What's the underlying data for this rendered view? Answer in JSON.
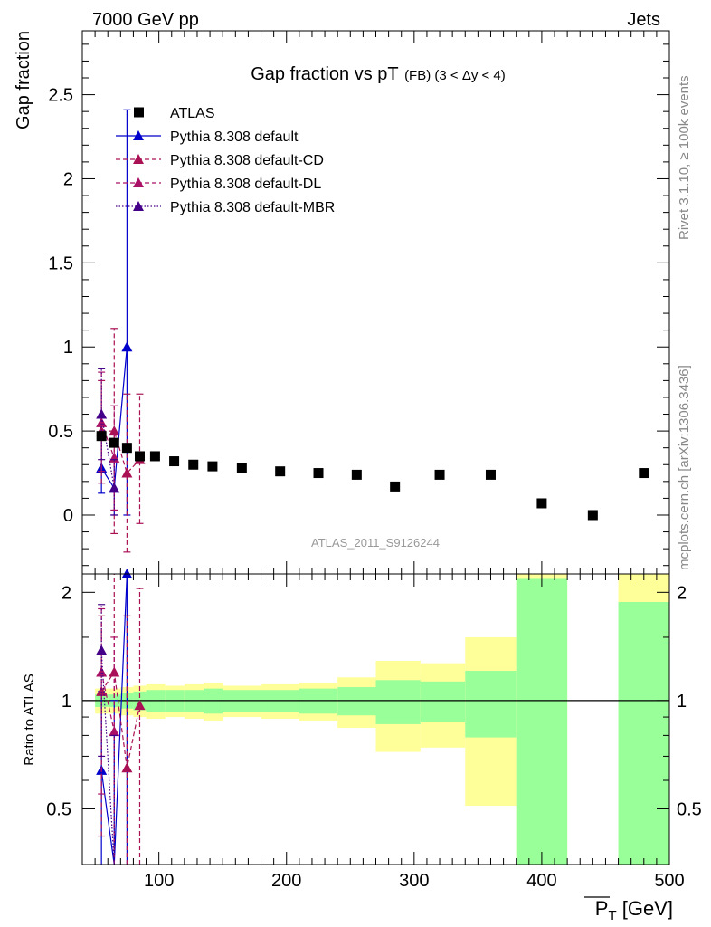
{
  "header": {
    "energy_label": "7000 GeV pp",
    "process_label": "Jets",
    "analysis_id": "ATLAS_2011_S9126244",
    "side_text_rivet": "Rivet 3.1.10, ≥ 100k events",
    "side_text_source": "mcplots.cern.ch [arXiv:1306.3436]"
  },
  "chart_data": [
    {
      "type": "scatter",
      "title_main": "Gap fraction vs pT",
      "title_sub": "(FB) (3 < Δy < 4)",
      "ylabel": "Gap fraction",
      "ylim": [
        -0.35,
        2.88
      ],
      "xlim": [
        40,
        500
      ],
      "y_ticks": [
        0,
        0.5,
        1,
        1.5,
        2,
        2.5
      ],
      "y_tick_labels": [
        "0",
        "0.5",
        "1",
        "1.5",
        "2",
        "2.5"
      ],
      "legend_position": "top-left",
      "legend": [
        {
          "label": "ATLAS",
          "color": "#000000",
          "marker": "square",
          "line": "none"
        },
        {
          "label": "Pythia 8.308 default",
          "color": "#0000cc",
          "marker": "triangle",
          "line": "solid"
        },
        {
          "label": "Pythia 8.308 default-CD",
          "color": "#aa1155",
          "marker": "triangle",
          "line": "dashed"
        },
        {
          "label": "Pythia 8.308 default-DL",
          "color": "#aa1166",
          "marker": "triangle",
          "line": "dashed"
        },
        {
          "label": "Pythia 8.308 default-MBR",
          "color": "#440088",
          "marker": "triangle",
          "line": "dotted"
        }
      ],
      "data_series": {
        "name": "ATLAS",
        "x": [
          55,
          65,
          75,
          85,
          97,
          112,
          127,
          142,
          165,
          195,
          225,
          255,
          285,
          320,
          360,
          400,
          440,
          480
        ],
        "y": [
          0.47,
          0.43,
          0.4,
          0.35,
          0.35,
          0.32,
          0.3,
          0.29,
          0.28,
          0.26,
          0.25,
          0.24,
          0.17,
          0.24,
          0.24,
          0.07,
          0.0,
          0.25
        ],
        "x_edges": [
          50,
          60,
          70,
          80,
          90,
          105,
          120,
          135,
          150,
          180,
          210,
          240,
          270,
          305,
          340,
          380,
          420,
          460,
          500
        ]
      },
      "mc_series": [
        {
          "name": "Pythia 8.308 default",
          "color": "#0000cc",
          "dash": "solid",
          "x": [
            55,
            65,
            75
          ],
          "y": [
            0.28,
            0.16,
            1.0
          ],
          "err_lo": [
            0.13,
            0.0,
            0.0
          ],
          "err_hi": [
            0.45,
            0.33,
            2.41
          ]
        },
        {
          "name": "Pythia 8.308 default-CD",
          "color": "#aa1155",
          "dash": "dashed",
          "x": [
            55,
            65,
            75,
            85
          ],
          "y": [
            0.5,
            0.5,
            0.25,
            0.33
          ],
          "err_lo": [
            0.19,
            -0.11,
            -0.22,
            -0.05
          ],
          "err_hi": [
            0.8,
            1.11,
            0.72,
            0.72
          ]
        },
        {
          "name": "Pythia 8.308 default-DL",
          "color": "#aa1166",
          "dash": "dashed",
          "x": [
            55,
            65
          ],
          "y": [
            0.55,
            0.34
          ],
          "err_lo": [
            0.26,
            0.03
          ],
          "err_hi": [
            0.85,
            0.65
          ]
        },
        {
          "name": "Pythia 8.308 default-MBR",
          "color": "#440088",
          "dash": "dotted",
          "x": [
            55,
            65
          ],
          "y": [
            0.6,
            0.16
          ],
          "err_lo": [
            0.33,
            0.0
          ],
          "err_hi": [
            0.87,
            0.33
          ]
        }
      ]
    },
    {
      "type": "scatter",
      "ylabel": "Ratio to ATLAS",
      "xlabel_main": "P",
      "xlabel_sub": "T",
      "xlabel_unit": " [GeV]",
      "ylim": [
        0.35,
        2.25
      ],
      "xlim": [
        40,
        500
      ],
      "y_ticks": [
        0.5,
        1,
        2
      ],
      "y_tick_labels": [
        "0.5",
        "1",
        "2"
      ],
      "x_ticks": [
        100,
        200,
        300,
        400,
        500
      ],
      "x_tick_labels": [
        "100",
        "200",
        "300",
        "400",
        "500"
      ],
      "reference_line": 1,
      "band_colors": {
        "stat": "#99ff99",
        "total": "#ffff99"
      },
      "bands": {
        "x_edges": [
          50,
          60,
          70,
          80,
          90,
          105,
          120,
          135,
          150,
          180,
          210,
          240,
          270,
          305,
          340,
          380,
          420,
          460,
          500
        ],
        "inner_lo": [
          0.96,
          0.96,
          0.95,
          0.94,
          0.93,
          0.93,
          0.93,
          0.92,
          0.93,
          0.93,
          0.92,
          0.91,
          0.86,
          0.87,
          0.79,
          0.35,
          null,
          0.35
        ],
        "inner_hi": [
          1.04,
          1.04,
          1.05,
          1.06,
          1.07,
          1.07,
          1.07,
          1.08,
          1.07,
          1.07,
          1.08,
          1.09,
          1.14,
          1.13,
          1.21,
          2.18,
          null,
          1.88
        ],
        "outer_lo": [
          0.92,
          0.92,
          0.91,
          0.9,
          0.89,
          0.9,
          0.89,
          0.88,
          0.9,
          0.89,
          0.88,
          0.84,
          0.72,
          0.74,
          0.51,
          0.35,
          null,
          0.35
        ],
        "outer_hi": [
          1.08,
          1.08,
          1.09,
          1.1,
          1.11,
          1.1,
          1.11,
          1.12,
          1.1,
          1.11,
          1.12,
          1.16,
          1.29,
          1.27,
          1.5,
          2.25,
          null,
          2.25
        ]
      },
      "mc_series": [
        {
          "name": "Pythia 8.308 default",
          "color": "#0000cc",
          "dash": "solid",
          "x": [
            55,
            65,
            75
          ],
          "y": [
            0.64,
            0.35,
            2.25
          ],
          "err_lo": [
            0.35,
            0.35,
            0.35
          ],
          "err_hi": [
            1.06,
            1.0,
            2.25
          ]
        },
        {
          "name": "Pythia 8.308 default-CD",
          "color": "#aa1155",
          "dash": "dashed",
          "x": [
            55,
            65,
            75,
            85
          ],
          "y": [
            1.06,
            1.2,
            0.65,
            0.97
          ],
          "err_lo": [
            0.42,
            0.35,
            0.35,
            0.35
          ],
          "err_hi": [
            1.72,
            2.25,
            1.72,
            2.05
          ]
        },
        {
          "name": "Pythia 8.308 default-DL",
          "color": "#aa1166",
          "dash": "dashed",
          "x": [
            55,
            65
          ],
          "y": [
            1.2,
            0.82
          ],
          "err_lo": [
            0.55,
            0.35
          ],
          "err_hi": [
            1.8,
            1.5
          ]
        },
        {
          "name": "Pythia 8.308 default-MBR",
          "color": "#440088",
          "dash": "dotted",
          "x": [
            55,
            65
          ],
          "y": [
            1.38,
            0.35
          ],
          "err_lo": [
            0.7,
            0.35
          ],
          "err_hi": [
            1.85,
            0.8
          ]
        }
      ]
    }
  ]
}
